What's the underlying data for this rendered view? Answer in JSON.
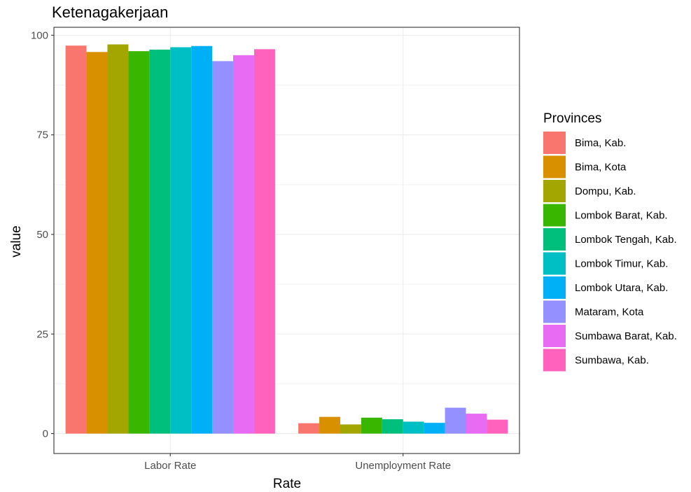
{
  "chart_data": {
    "type": "bar",
    "title": "Ketenagakerjaan",
    "xlabel": "Rate",
    "ylabel": "value",
    "categories": [
      "Labor Rate",
      "Unemployment Rate"
    ],
    "ylim": [
      -5,
      102
    ],
    "yticks": [
      0,
      25,
      50,
      75,
      100
    ],
    "grid": true,
    "legend_title": "Provinces",
    "legend_position": "right",
    "series": [
      {
        "name": "Bima, Kab.",
        "color": "#F8766D",
        "values": [
          97.4,
          2.6
        ]
      },
      {
        "name": "Bima, Kota",
        "color": "#D89000",
        "values": [
          95.8,
          4.2
        ]
      },
      {
        "name": "Dompu, Kab.",
        "color": "#A3A500",
        "values": [
          97.7,
          2.3
        ]
      },
      {
        "name": "Lombok Barat, Kab.",
        "color": "#39B600",
        "values": [
          96.0,
          4.0
        ]
      },
      {
        "name": "Lombok Tengah, Kab.",
        "color": "#00BF7D",
        "values": [
          96.4,
          3.6
        ]
      },
      {
        "name": "Lombok Timur, Kab.",
        "color": "#00BFC4",
        "values": [
          97.0,
          3.0
        ]
      },
      {
        "name": "Lombok Utara, Kab.",
        "color": "#00B0F6",
        "values": [
          97.3,
          2.7
        ]
      },
      {
        "name": "Mataram, Kota",
        "color": "#9590FF",
        "values": [
          93.5,
          6.5
        ]
      },
      {
        "name": "Sumbawa Barat, Kab.",
        "color": "#E76BF3",
        "values": [
          95.0,
          5.0
        ]
      },
      {
        "name": "Sumbawa, Kab.",
        "color": "#FF62BC",
        "values": [
          96.5,
          3.5
        ]
      }
    ]
  }
}
